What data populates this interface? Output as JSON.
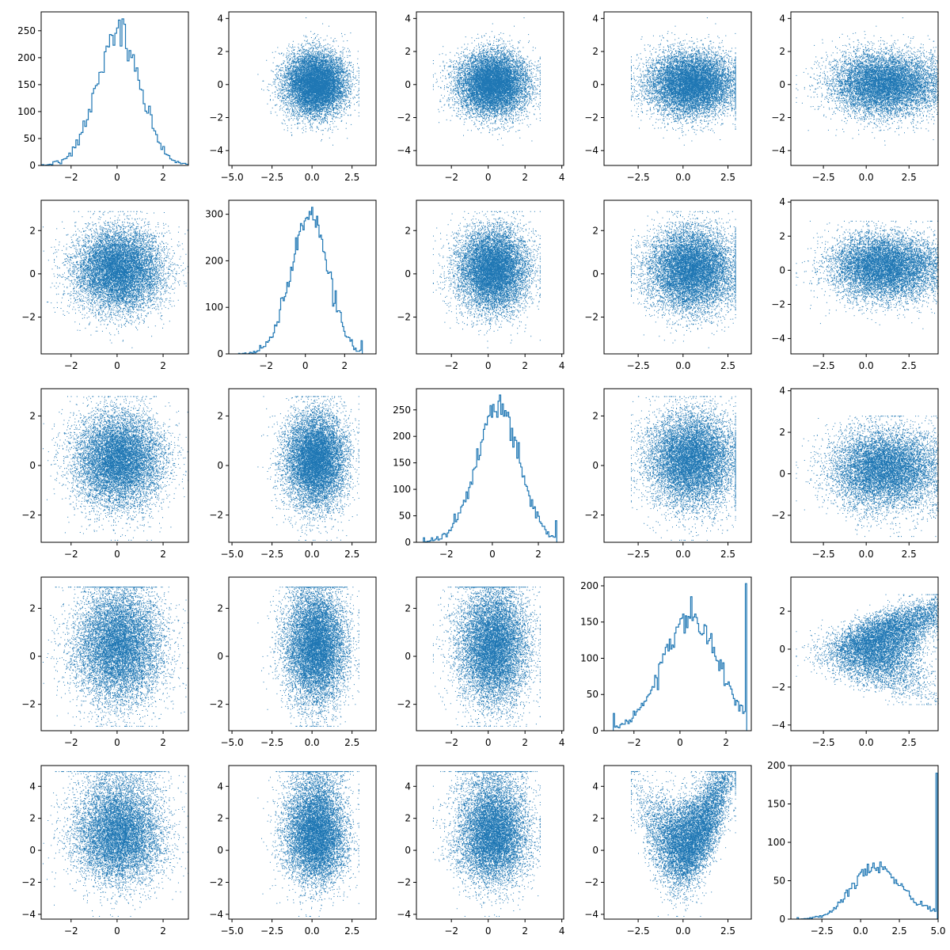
{
  "colors": {
    "series": "#1f77b4",
    "axes": "#000000",
    "background": "#ffffff"
  },
  "chart_data": {
    "type": "pairplot",
    "grid": {
      "rows": 5,
      "cols": 5,
      "show_grid": false
    },
    "samples_per_variable": 10000,
    "diagonal_type": "histogram",
    "offdiagonal_type": "scatter",
    "legend": "none",
    "variables": [
      {
        "name": "",
        "mean": 0.05,
        "sd": 0.95,
        "xlim": [
          -3.3,
          3.1
        ],
        "xticks": [
          -2,
          0,
          2
        ],
        "ylim_scatter": [
          -4.9,
          4.4
        ],
        "yticks_scatter": [
          -4,
          -2,
          0,
          2,
          4
        ]
      },
      {
        "name": "",
        "mean": 0.2,
        "sd": 0.95,
        "xlim": [
          -3.9,
          3.6
        ],
        "xticks": [
          -2,
          0,
          2
        ],
        "ylim_scatter": [
          -3.7,
          3.4
        ],
        "yticks_scatter": [
          -2,
          0,
          2
        ]
      },
      {
        "name": "",
        "mean": 0.25,
        "sd": 0.95,
        "xlim": [
          -3.3,
          3.1
        ],
        "xticks": [
          -2,
          0,
          2
        ],
        "ylim_scatter": [
          -3.1,
          3.1
        ],
        "yticks_scatter": [
          -2,
          0,
          2
        ]
      },
      {
        "name": "",
        "mean": 0.45,
        "sd": 1.2,
        "xlim": [
          -3.3,
          3.1
        ],
        "xticks": [
          -2,
          0,
          2
        ],
        "ylim_scatter": [
          -3.1,
          3.3
        ],
        "yticks_scatter": [
          -2,
          0,
          2
        ]
      },
      {
        "name": "",
        "mean": 1.2,
        "sd": 1.7,
        "xlim": [
          -4.5,
          5.0
        ],
        "xticks": [
          -2.5,
          0.0,
          2.5,
          5.0
        ],
        "ylim_scatter": [
          -4.3,
          5.3
        ],
        "yticks_scatter": [
          -4,
          -2,
          0,
          2,
          4
        ]
      }
    ],
    "scatter_xlims_by_column": [
      {
        "xlim": [
          -3.3,
          3.1
        ],
        "xticks": [
          -2,
          0,
          2
        ]
      },
      {
        "xlim": [
          -5.2,
          4.0
        ],
        "xticks": [
          -5.0,
          -2.5,
          0.0,
          2.5
        ]
      },
      {
        "xlim": [
          -3.9,
          4.1
        ],
        "xticks": [
          -2,
          0,
          2,
          4
        ]
      },
      {
        "xlim": [
          -4.4,
          3.8
        ],
        "xticks": [
          -2.5,
          0.0,
          2.5
        ]
      },
      {
        "xlim": [
          -4.4,
          4.2
        ],
        "xticks": [
          -2.5,
          0.0,
          2.5
        ]
      }
    ],
    "row_ylims_scatter": [
      {
        "ylim": [
          -4.9,
          4.4
        ],
        "yticks": [
          -4,
          -2,
          0,
          2,
          4
        ]
      },
      {
        "ylim": [
          -3.7,
          3.4
        ],
        "yticks": [
          -2,
          0,
          2
        ]
      },
      {
        "ylim": [
          -3.1,
          3.1
        ],
        "yticks": [
          -2,
          0,
          2
        ]
      },
      {
        "ylim": [
          -3.1,
          3.3
        ],
        "yticks": [
          -2,
          0,
          2
        ]
      },
      {
        "ylim": [
          -4.3,
          5.3
        ],
        "yticks": [
          -4,
          -2,
          0,
          2,
          4
        ]
      }
    ],
    "row_ylims_scatter_last_col": [
      {
        "ylim": [
          -4.9,
          4.4
        ],
        "yticks": [
          -4,
          -2,
          0,
          2,
          4
        ]
      },
      {
        "ylim": [
          -4.9,
          4.1
        ],
        "yticks": [
          -4,
          -2,
          0,
          2,
          4
        ]
      },
      {
        "ylim": [
          -3.3,
          4.1
        ],
        "yticks": [
          -2,
          0,
          2,
          4
        ]
      },
      {
        "ylim": [
          -4.3,
          3.8
        ],
        "yticks": [
          -4,
          -2,
          0,
          2
        ]
      },
      {
        "ylim": [
          -4.3,
          5.3
        ],
        "yticks": [
          -4,
          -2,
          0,
          2,
          4
        ]
      }
    ],
    "histograms": [
      {
        "xlim": [
          -3.3,
          3.1
        ],
        "xticks": [
          -2,
          0,
          2
        ],
        "ylim": [
          0,
          285
        ],
        "yticks": [
          0,
          50,
          100,
          150,
          200,
          250
        ],
        "bins": 100,
        "peak": 272
      },
      {
        "xlim": [
          -3.9,
          3.6
        ],
        "xticks": [
          -2,
          0,
          2
        ],
        "ylim": [
          0,
          330
        ],
        "yticks": [
          0,
          100,
          200,
          300
        ],
        "bins": 100,
        "peak": 315
      },
      {
        "xlim": [
          -3.3,
          3.1
        ],
        "xticks": [
          -2,
          0,
          2
        ],
        "ylim": [
          0,
          290
        ],
        "yticks": [
          0,
          50,
          100,
          150,
          200,
          250
        ],
        "bins": 100,
        "peak": 278
      },
      {
        "xlim": [
          -3.3,
          3.1
        ],
        "xticks": [
          -2,
          0,
          2
        ],
        "ylim": [
          0,
          212
        ],
        "yticks": [
          0,
          50,
          100,
          150,
          200
        ],
        "bins": 100,
        "peak": 203
      },
      {
        "xlim": [
          -4.5,
          5.0
        ],
        "xticks": [
          -2.5,
          0.0,
          2.5,
          5.0
        ],
        "ylim": [
          0,
          200
        ],
        "yticks": [
          0,
          50,
          100,
          150,
          200
        ],
        "bins": 100,
        "peak": 190
      }
    ]
  }
}
